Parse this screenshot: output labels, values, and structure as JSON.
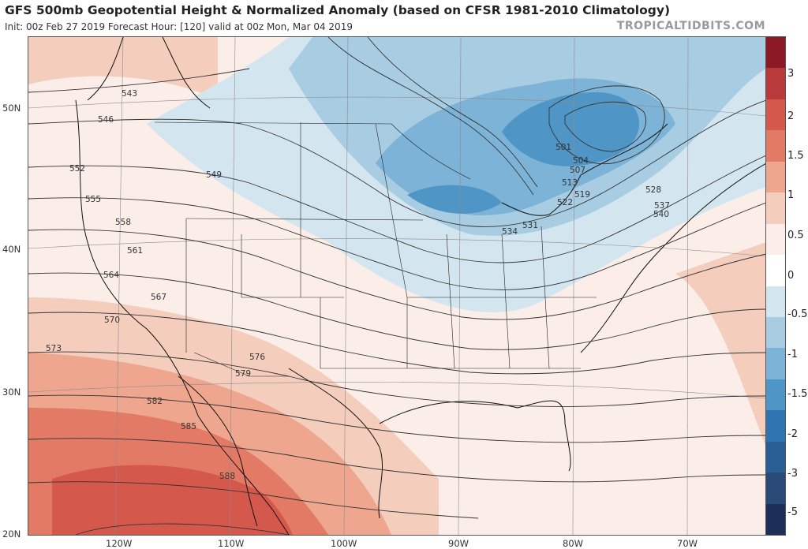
{
  "header": {
    "title": "GFS 500mb Geopotential Height & Normalized Anomaly (based on CFSR 1981-2010 Climatology)",
    "subtitle": "Init: 00z Feb 27 2019   Forecast Hour: [120]   valid at 00z Mon, Mar 04 2019",
    "credit": "TROPICALTIDBITS.COM"
  },
  "axes": {
    "lat_labels": [
      "50N",
      "40N",
      "30N",
      "20N"
    ],
    "lon_labels": [
      "120W",
      "110W",
      "100W",
      "90W",
      "80W",
      "70W"
    ]
  },
  "colorbar": {
    "labels": [
      "3",
      "2",
      "1.5",
      "1",
      "0.5",
      "0",
      "-0.5",
      "-1",
      "-1.5",
      "-2",
      "-3",
      "-5"
    ],
    "colors": [
      "#8b1a24",
      "#b93a3a",
      "#d5584c",
      "#e27a66",
      "#eea68e",
      "#f5cdbd",
      "#fbeee8",
      "#ffffff",
      "#d3e6f0",
      "#a8cde2",
      "#7cb3d6",
      "#4f96c6",
      "#2f74b1",
      "#2a5f96",
      "#2a4a78",
      "#1d2f58"
    ]
  },
  "contour_labels": [
    "543",
    "546",
    "549",
    "552",
    "555",
    "558",
    "561",
    "564",
    "567",
    "570",
    "573",
    "576",
    "579",
    "582",
    "585",
    "588",
    "501",
    "504",
    "507",
    "513",
    "519",
    "522",
    "528",
    "531",
    "534",
    "537",
    "540"
  ]
}
